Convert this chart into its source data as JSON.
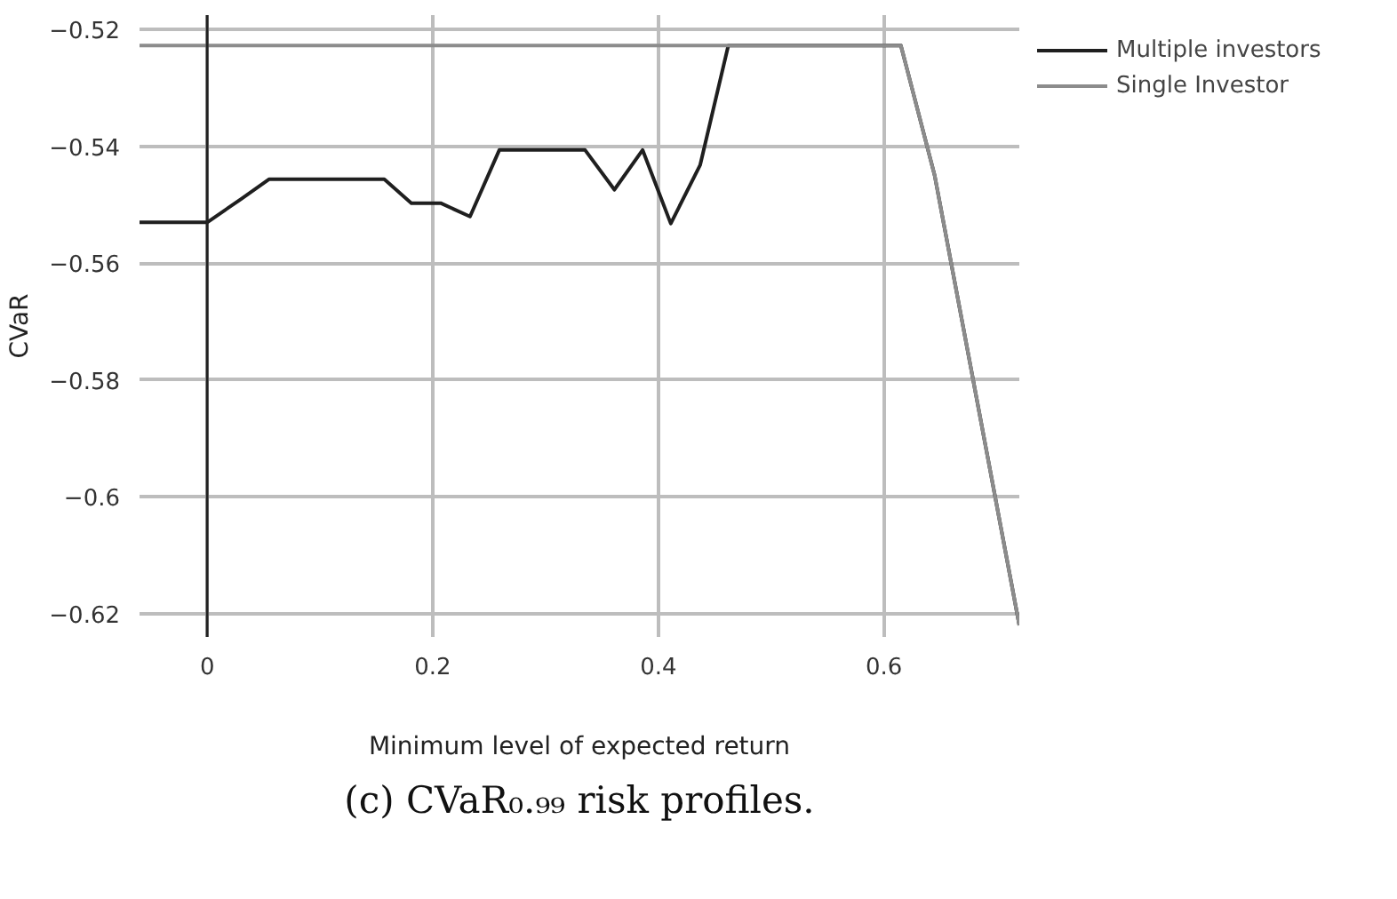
{
  "chart_data": {
    "type": "line",
    "title": "(c) CVaR₀.₉₉ risk profiles.",
    "xlabel": "Minimum level of expected return",
    "ylabel": "CVaR",
    "xlim": [
      -0.06,
      0.72
    ],
    "ylim": [
      -0.624,
      -0.5175
    ],
    "xticks": [
      0,
      0.2,
      0.4,
      0.6
    ],
    "yticks": [
      {
        "value": -0.62,
        "label": "−0.62"
      },
      {
        "value": -0.6,
        "label": "−0.6"
      },
      {
        "value": -0.58,
        "label": "−0.58"
      },
      {
        "value": -0.56,
        "label": "−0.56"
      },
      {
        "value": -0.54,
        "label": "−0.54"
      },
      {
        "value": -0.52,
        "label": "−0.52"
      }
    ],
    "grid": true,
    "legend": "top right",
    "line_style": "solid",
    "ref_lines": [
      {
        "axis": "x",
        "value": 0,
        "color": "#222222"
      }
    ],
    "series": [
      {
        "name": "Multiple investors",
        "color": "#1f1f1f",
        "x": [
          -0.06,
          0,
          0.03,
          0.055,
          0.157,
          0.181,
          0.207,
          0.233,
          0.259,
          0.335,
          0.361,
          0.386,
          0.411,
          0.437,
          0.462,
          0.615,
          0.645,
          0.72
        ],
        "values": [
          -0.553,
          -0.553,
          -0.549,
          -0.5456,
          -0.5456,
          -0.5497,
          -0.5497,
          -0.552,
          -0.5406,
          -0.5406,
          -0.5474,
          -0.5406,
          -0.5532,
          -0.5432,
          -0.5227,
          -0.5227,
          -0.545,
          -0.622
        ]
      },
      {
        "name": "Single Investor",
        "color": "#8c8c8c",
        "x": [
          -0.06,
          0.615,
          0.645,
          0.72
        ],
        "values": [
          -0.5227,
          -0.5227,
          -0.545,
          -0.622
        ]
      }
    ]
  }
}
